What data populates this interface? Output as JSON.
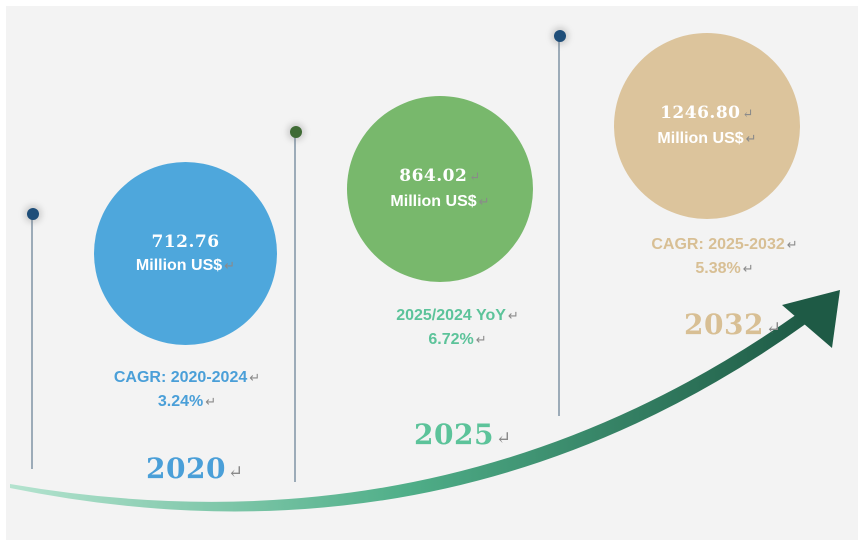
{
  "chart_data": {
    "type": "infographic",
    "title": "",
    "points": [
      {
        "year": "2020",
        "value": "712.76",
        "unit": "Million US$",
        "metric_label": "CAGR: 2020-2024",
        "metric_value": "3.24%",
        "color": "#4ea7dc",
        "dot_color": "#1f4e79"
      },
      {
        "year": "2025",
        "value": "864.02",
        "unit": "Million US$",
        "metric_label": "2025/2024 YoY",
        "metric_value": "6.72%",
        "color": "#78b86c",
        "dot_color": "#3f6b35"
      },
      {
        "year": "2032",
        "value": "1246.80",
        "unit": "Million US$",
        "metric_label": "CAGR: 2025-2032",
        "metric_value": "5.38%",
        "color": "#dcc49c",
        "dot_color": "#1f4e79"
      }
    ],
    "label_colors": {
      "2020": "#4a9fd8",
      "2025": "#5cc39a",
      "2032": "#d8bf94"
    },
    "return_mark": "↵"
  }
}
